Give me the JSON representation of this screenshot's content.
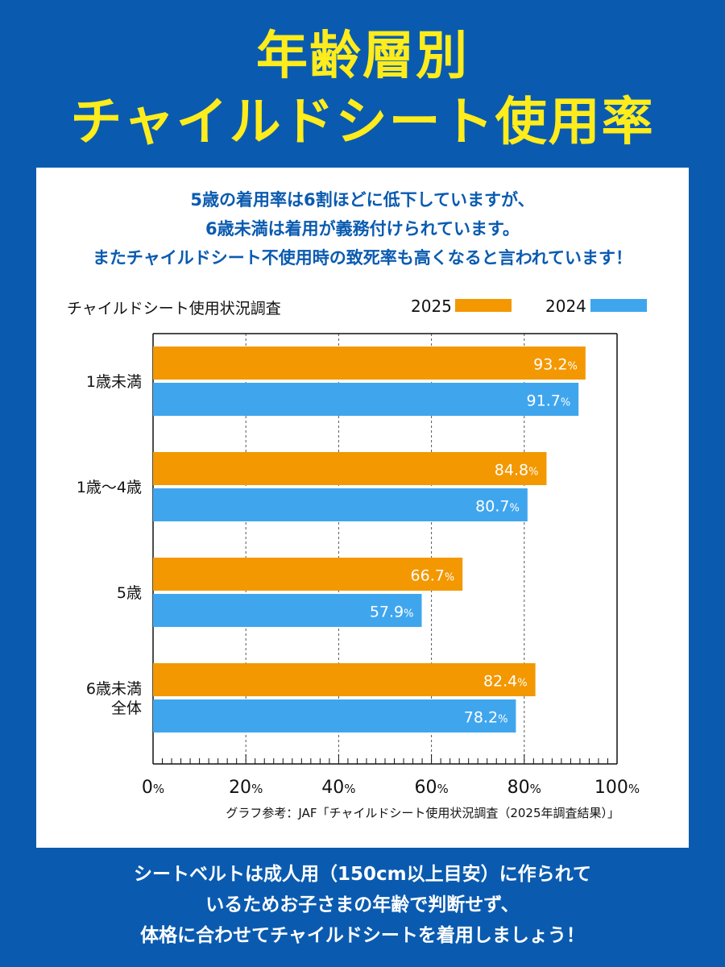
{
  "header": {
    "title_line1": "年齢層別",
    "title_line2": "チャイルドシート使用率"
  },
  "intro": {
    "line1": "5歳の着用率は6割ほどに低下していますが、",
    "line2": "6歳未満は着用が義務付けられています。",
    "line3": "またチャイルドシート不使用時の致死率も高くなると言われています！"
  },
  "chart_data": {
    "type": "bar",
    "orientation": "horizontal",
    "title": "チャイルドシート使用状況調査",
    "categories": [
      "1歳未満",
      "1歳〜4歳",
      "5歳",
      "6歳未満\n全体"
    ],
    "series": [
      {
        "name": "2025",
        "values": [
          93.2,
          84.8,
          66.7,
          82.4
        ],
        "color": "#f39800"
      },
      {
        "name": "2024",
        "values": [
          91.7,
          80.7,
          57.9,
          78.2
        ],
        "color": "#3fa6ee"
      }
    ],
    "xlim": [
      0,
      100
    ],
    "x_ticks": [
      "0",
      "20",
      "40",
      "60",
      "80",
      "100"
    ],
    "tick_unit": "%",
    "value_unit": "%",
    "grid": "dashed vertical lines at 20, 40, 60, 80",
    "legend_position": "top-right",
    "source": "グラフ参考：JAF「チャイルドシート使用状況調査（2025年調査結果）」"
  },
  "footer": {
    "line1": "シートベルトは成人用（150cm以上目安）に作られて",
    "line2": "いるためお子さまの年齢で判断せず、",
    "line3": "体格に合わせてチャイルドシートを着用しましょう！"
  }
}
